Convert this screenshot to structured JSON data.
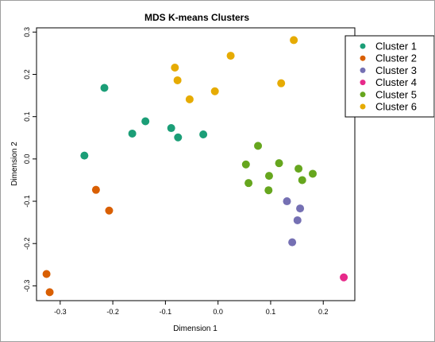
{
  "chart_data": {
    "type": "scatter",
    "title": "MDS K-means Clusters",
    "xlabel": "Dimension 1",
    "ylabel": "Dimension 2",
    "xlim": [
      -0.345,
      0.26
    ],
    "ylim": [
      -0.335,
      0.31
    ],
    "xticks": [
      -0.3,
      -0.2,
      -0.1,
      0.0,
      0.1,
      0.2
    ],
    "xtick_labels": [
      "-0.3",
      "-0.2",
      "-0.1",
      "0.0",
      "0.1",
      "0.2"
    ],
    "yticks": [
      -0.3,
      -0.2,
      -0.1,
      0.0,
      0.1,
      0.2,
      0.3
    ],
    "ytick_labels": [
      "-0.3",
      "-0.2",
      "-0.1",
      "0.0",
      "0.1",
      "0.2",
      "0.3"
    ],
    "grid": false,
    "legend_position": "top-right",
    "series": [
      {
        "name": "Cluster 1",
        "color": "#1b9e77",
        "points": [
          [
            -0.254,
            0.008
          ],
          [
            -0.216,
            0.168
          ],
          [
            -0.163,
            0.06
          ],
          [
            -0.138,
            0.089
          ],
          [
            -0.089,
            0.073
          ],
          [
            -0.076,
            0.051
          ],
          [
            -0.028,
            0.058
          ]
        ]
      },
      {
        "name": "Cluster 2",
        "color": "#d95f02",
        "points": [
          [
            -0.232,
            -0.073
          ],
          [
            -0.207,
            -0.122
          ],
          [
            -0.326,
            -0.272
          ],
          [
            -0.32,
            -0.315
          ]
        ]
      },
      {
        "name": "Cluster 3",
        "color": "#7570b3",
        "points": [
          [
            0.131,
            -0.1
          ],
          [
            0.156,
            -0.117
          ],
          [
            0.151,
            -0.145
          ],
          [
            0.141,
            -0.197
          ]
        ]
      },
      {
        "name": "Cluster 4",
        "color": "#e7298a",
        "points": [
          [
            0.239,
            -0.28
          ]
        ]
      },
      {
        "name": "Cluster 5",
        "color": "#66a61e",
        "points": [
          [
            0.076,
            0.031
          ],
          [
            0.053,
            -0.013
          ],
          [
            0.058,
            -0.057
          ],
          [
            0.097,
            -0.04
          ],
          [
            0.116,
            -0.01
          ],
          [
            0.096,
            -0.074
          ],
          [
            0.153,
            -0.023
          ],
          [
            0.16,
            -0.05
          ],
          [
            0.18,
            -0.035
          ]
        ]
      },
      {
        "name": "Cluster 6",
        "color": "#e6ab02",
        "points": [
          [
            -0.082,
            0.216
          ],
          [
            -0.077,
            0.186
          ],
          [
            -0.054,
            0.141
          ],
          [
            -0.006,
            0.16
          ],
          [
            0.024,
            0.244
          ],
          [
            0.12,
            0.179
          ],
          [
            0.144,
            0.281
          ]
        ]
      }
    ]
  }
}
